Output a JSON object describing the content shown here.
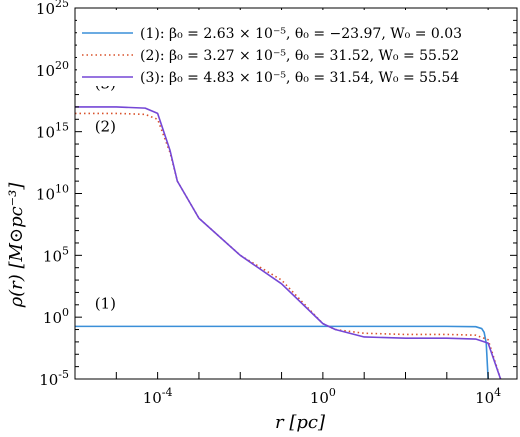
{
  "chart_data": {
    "type": "line",
    "xscale": "log",
    "yscale": "log",
    "xlim": [
      1e-06,
      50000
    ],
    "ylim": [
      1e-05,
      1e+25
    ],
    "x_ticks": [
      {
        "value": 0.0001,
        "base": "10",
        "exp": "-4"
      },
      {
        "value": 1,
        "base": "10",
        "exp": "0"
      },
      {
        "value": 10000,
        "base": "10",
        "exp": "4"
      }
    ],
    "y_ticks": [
      {
        "value": 1e-05,
        "base": "10",
        "exp": "-5"
      },
      {
        "value": 1,
        "base": "10",
        "exp": "0"
      },
      {
        "value": 100000,
        "base": "10",
        "exp": "5"
      },
      {
        "value": 10000000000.0,
        "base": "10",
        "exp": "10"
      },
      {
        "value": 1000000000000000.0,
        "base": "10",
        "exp": "15"
      },
      {
        "value": 1e+20,
        "base": "10",
        "exp": "20"
      },
      {
        "value": 1e+25,
        "base": "10",
        "exp": "25"
      }
    ],
    "xlabel": "r   [pc]",
    "ylabel": "ρ(r)   [M⊙pc⁻³]",
    "legend_position": "top-right",
    "grid": false,
    "series": [
      {
        "name": "(1): β₀ = 2.63 × 10⁻⁵, θ₀ = −23.97, W₀ = 0.03",
        "color": "#3a8fd8",
        "dash": "solid",
        "points": [
          [
            1e-06,
            0.18
          ],
          [
            1,
            0.18
          ],
          [
            1000,
            0.18
          ],
          [
            5000,
            0.17
          ],
          [
            7000,
            0.12
          ],
          [
            8000,
            0.06
          ],
          [
            9000,
            0.008
          ],
          [
            10000,
            1e-05
          ]
        ]
      },
      {
        "name": "(2): β₀ = 3.27 × 10⁻⁵, θ₀ = 31.52, W₀ = 55.52",
        "color": "#d9522b",
        "dash": "dotted",
        "points": [
          [
            1e-06,
            3e+16
          ],
          [
            1e-05,
            3e+16
          ],
          [
            5e-05,
            2.5e+16
          ],
          [
            0.0001,
            1e+16
          ],
          [
            0.0002,
            20000000000000.0
          ],
          [
            0.0003,
            100000000000.0
          ],
          [
            0.001,
            100000000.0
          ],
          [
            0.01,
            100000.0
          ],
          [
            0.1,
            1000.0
          ],
          [
            1,
            0.3
          ],
          [
            2,
            0.1
          ],
          [
            10,
            0.05
          ],
          [
            100,
            0.04
          ],
          [
            1000,
            0.04
          ],
          [
            5000,
            0.035
          ],
          [
            10000,
            0.015
          ],
          [
            20000,
            1e-05
          ]
        ]
      },
      {
        "name": "(3): β₀ = 4.83 × 10⁻⁵, θ₀ = 31.54, W₀ = 55.54",
        "color": "#7547d6",
        "dash": "solid",
        "points": [
          [
            1e-06,
            1e+17
          ],
          [
            1e-05,
            1e+17
          ],
          [
            5e-05,
            8e+16
          ],
          [
            0.0001,
            3e+16
          ],
          [
            0.0002,
            30000000000000.0
          ],
          [
            0.0003,
            100000000000.0
          ],
          [
            0.001,
            100000000.0
          ],
          [
            0.01,
            100000.0
          ],
          [
            0.1,
            500
          ],
          [
            1,
            0.3
          ],
          [
            2,
            0.1
          ],
          [
            10,
            0.025
          ],
          [
            100,
            0.02
          ],
          [
            1000,
            0.02
          ],
          [
            5000,
            0.017
          ],
          [
            10000,
            0.008
          ],
          [
            20000,
            1e-05
          ]
        ]
      }
    ],
    "annotations": [
      {
        "text": "(3)",
        "x": 3e-06,
        "y": 3e+18
      },
      {
        "text": "(2)",
        "x": 3e-06,
        "y": 1000000000000000.0
      },
      {
        "text": "(1)",
        "x": 3e-06,
        "y": 5
      }
    ]
  }
}
